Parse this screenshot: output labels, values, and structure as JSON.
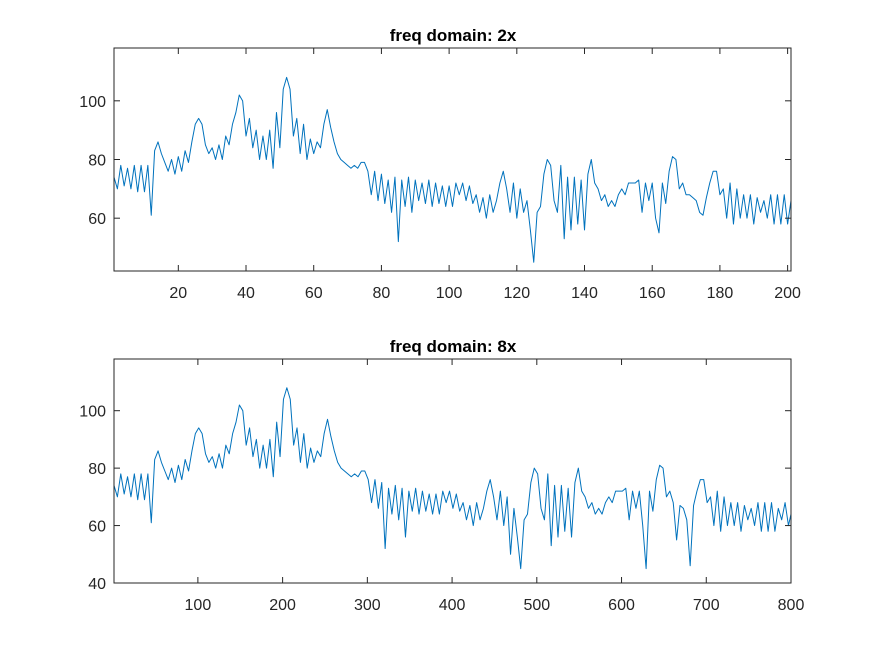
{
  "chart_data": [
    {
      "type": "line",
      "title": "freq domain: 2x",
      "xlabel": "",
      "ylabel": "",
      "xlim": [
        1,
        201
      ],
      "ylim": [
        42,
        118
      ],
      "xticks": [
        20,
        40,
        60,
        80,
        100,
        120,
        140,
        160,
        180,
        200
      ],
      "yticks": [
        60,
        80,
        100
      ],
      "grid": false,
      "color": "#0072BD",
      "series": [
        {
          "x": [
            1,
            2,
            3,
            4,
            5,
            6,
            7,
            8,
            9,
            10,
            11,
            12,
            13,
            14,
            15,
            16,
            17,
            18,
            19,
            20,
            21,
            22,
            23,
            24,
            25,
            26,
            27,
            28,
            29,
            30,
            31,
            32,
            33,
            34,
            35,
            36,
            37,
            38,
            39,
            40,
            41,
            42,
            43,
            44,
            45,
            46,
            47,
            48,
            49,
            50,
            51,
            52,
            53,
            54,
            55,
            56,
            57,
            58,
            59,
            60,
            61,
            62,
            63,
            64,
            65,
            66,
            67,
            68,
            69,
            70,
            71,
            72,
            73,
            74,
            75,
            76,
            77,
            78,
            79,
            80,
            81,
            82,
            83,
            84,
            85,
            86,
            87,
            88,
            89,
            90,
            91,
            92,
            93,
            94,
            95,
            96,
            97,
            98,
            99,
            100,
            101,
            102,
            103,
            104,
            105,
            106,
            107,
            108,
            109,
            110,
            111,
            112,
            113,
            114,
            115,
            116,
            117,
            118,
            119,
            120,
            121,
            122,
            123,
            124,
            125,
            126,
            127,
            128,
            129,
            130,
            131,
            132,
            133,
            134,
            135,
            136,
            137,
            138,
            139,
            140,
            141,
            142,
            143,
            144,
            145,
            146,
            147,
            148,
            149,
            150,
            151,
            152,
            153,
            154,
            155,
            156,
            157,
            158,
            159,
            160,
            161,
            162,
            163,
            164,
            165,
            166,
            167,
            168,
            169,
            170,
            171,
            172,
            173,
            174,
            175,
            176,
            177,
            178,
            179,
            180,
            181,
            182,
            183,
            184,
            185,
            186,
            187,
            188,
            189,
            190,
            191,
            192,
            193,
            194,
            195,
            196,
            197,
            198,
            199,
            200,
            201
          ],
          "y": [
            74,
            70,
            78,
            71,
            77,
            70,
            78,
            69,
            78,
            69,
            78,
            61,
            83,
            86,
            82,
            79,
            76,
            80,
            75,
            81,
            76,
            83,
            79,
            86,
            92,
            94,
            92,
            85,
            82,
            84,
            80,
            85,
            80,
            88,
            85,
            92,
            96,
            102,
            100,
            88,
            94,
            84,
            90,
            80,
            88,
            80,
            90,
            77,
            96,
            84,
            104,
            108,
            104,
            88,
            94,
            82,
            92,
            80,
            87,
            82,
            86,
            84,
            92,
            97,
            91,
            86,
            82,
            80,
            79,
            78,
            77,
            78,
            77,
            79,
            79,
            76,
            68,
            76,
            66,
            75,
            65,
            73,
            62,
            74,
            52,
            73,
            64,
            74,
            62,
            73,
            66,
            72,
            65,
            73,
            64,
            72,
            65,
            71,
            64,
            71,
            64,
            72,
            68,
            72,
            66,
            71,
            65,
            68,
            62,
            67,
            60,
            68,
            62,
            66,
            72,
            76,
            70,
            62,
            72,
            60,
            70,
            62,
            66,
            56,
            45,
            62,
            64,
            75,
            80,
            78,
            66,
            62,
            78,
            53,
            74,
            56,
            74,
            58,
            73,
            56,
            75,
            80,
            72,
            70,
            66,
            68,
            64,
            66,
            64,
            68,
            70,
            68,
            72,
            72,
            72,
            73,
            62,
            72,
            66,
            72,
            60,
            55,
            72,
            65,
            76,
            81,
            80,
            70,
            72,
            68,
            68,
            67,
            66,
            62,
            61,
            67,
            72,
            76,
            76,
            68,
            70,
            60,
            72,
            58,
            70,
            60,
            68,
            60,
            68,
            58,
            67,
            62,
            66,
            60,
            68,
            58,
            68,
            58,
            68,
            58,
            66
          ]
        }
      ]
    },
    {
      "type": "line",
      "title": "freq domain: 8x",
      "xlabel": "",
      "ylabel": "",
      "xlim": [
        1,
        800
      ],
      "ylim": [
        40,
        118
      ],
      "xticks": [
        100,
        200,
        300,
        400,
        500,
        600,
        700,
        800
      ],
      "yticks": [
        40,
        60,
        80,
        100
      ],
      "grid": false,
      "color": "#0072BD",
      "series": [
        {
          "x": [
            1,
            5,
            9,
            13,
            17,
            21,
            25,
            29,
            33,
            37,
            41,
            45,
            49,
            53,
            57,
            61,
            65,
            69,
            73,
            77,
            81,
            85,
            89,
            93,
            97,
            101,
            105,
            109,
            113,
            117,
            121,
            125,
            129,
            133,
            137,
            141,
            145,
            149,
            153,
            157,
            161,
            165,
            169,
            173,
            177,
            181,
            185,
            189,
            193,
            197,
            201,
            205,
            209,
            213,
            217,
            221,
            225,
            229,
            233,
            237,
            241,
            245,
            249,
            253,
            257,
            261,
            265,
            269,
            273,
            277,
            281,
            285,
            289,
            293,
            297,
            301,
            305,
            309,
            313,
            317,
            321,
            325,
            329,
            333,
            337,
            341,
            345,
            349,
            353,
            357,
            361,
            365,
            369,
            373,
            377,
            381,
            385,
            389,
            393,
            397,
            401,
            405,
            409,
            413,
            417,
            421,
            425,
            429,
            433,
            437,
            441,
            445,
            449,
            453,
            457,
            461,
            465,
            469,
            473,
            477,
            481,
            485,
            489,
            493,
            497,
            501,
            505,
            509,
            513,
            517,
            521,
            525,
            529,
            533,
            537,
            541,
            545,
            549,
            553,
            557,
            561,
            565,
            569,
            573,
            577,
            581,
            585,
            589,
            593,
            597,
            601,
            605,
            609,
            613,
            617,
            621,
            625,
            629,
            633,
            637,
            641,
            645,
            649,
            653,
            657,
            661,
            665,
            669,
            673,
            677,
            681,
            685,
            689,
            693,
            697,
            701,
            705,
            709,
            713,
            717,
            721,
            725,
            729,
            733,
            737,
            741,
            745,
            749,
            753,
            757,
            761,
            765,
            769,
            773,
            777,
            781,
            785,
            789,
            793,
            797,
            800
          ],
          "y": [
            74,
            70,
            78,
            71,
            77,
            70,
            78,
            69,
            78,
            69,
            78,
            61,
            83,
            86,
            82,
            79,
            76,
            80,
            75,
            81,
            76,
            83,
            79,
            86,
            92,
            94,
            92,
            85,
            82,
            84,
            80,
            85,
            80,
            88,
            85,
            92,
            96,
            102,
            100,
            88,
            94,
            84,
            90,
            80,
            88,
            80,
            90,
            77,
            96,
            84,
            104,
            108,
            104,
            88,
            94,
            82,
            92,
            80,
            87,
            82,
            86,
            84,
            92,
            97,
            91,
            86,
            82,
            80,
            79,
            78,
            77,
            78,
            77,
            79,
            79,
            76,
            68,
            76,
            66,
            75,
            52,
            73,
            64,
            74,
            62,
            73,
            56,
            72,
            65,
            73,
            64,
            72,
            65,
            71,
            64,
            71,
            64,
            72,
            68,
            72,
            66,
            71,
            65,
            68,
            62,
            67,
            60,
            68,
            62,
            66,
            72,
            76,
            70,
            62,
            72,
            60,
            70,
            50,
            66,
            56,
            45,
            62,
            64,
            75,
            80,
            78,
            66,
            62,
            78,
            53,
            74,
            56,
            74,
            58,
            73,
            56,
            75,
            80,
            72,
            70,
            66,
            68,
            64,
            66,
            64,
            68,
            70,
            68,
            72,
            72,
            72,
            73,
            62,
            72,
            66,
            72,
            60,
            45,
            72,
            65,
            76,
            81,
            80,
            70,
            72,
            68,
            55,
            67,
            66,
            62,
            46,
            67,
            72,
            76,
            76,
            68,
            70,
            60,
            72,
            58,
            70,
            60,
            68,
            60,
            68,
            58,
            67,
            62,
            66,
            60,
            68,
            58,
            68,
            58,
            68,
            58,
            66,
            62,
            68,
            60,
            64
          ]
        }
      ]
    }
  ]
}
